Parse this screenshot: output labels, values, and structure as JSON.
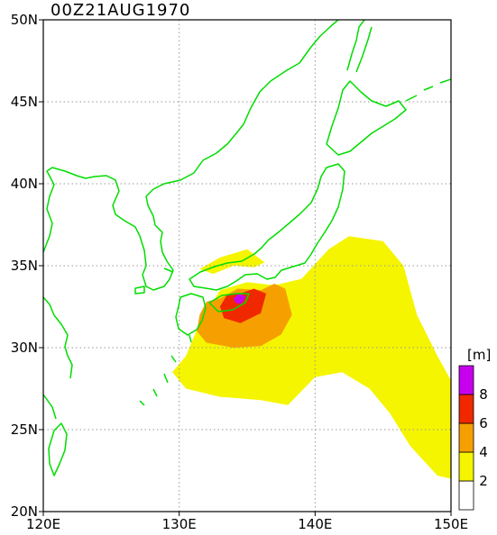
{
  "title": "00Z21AUG1970",
  "axes": {
    "lon": {
      "min": 120,
      "max": 150,
      "ticks": [
        {
          "value": 120,
          "label": "120E"
        },
        {
          "value": 130,
          "label": "130E"
        },
        {
          "value": 140,
          "label": "140E"
        },
        {
          "value": 150,
          "label": "150E"
        }
      ]
    },
    "lat": {
      "min": 20,
      "max": 50,
      "ticks": [
        {
          "value": 20,
          "label": "20N"
        },
        {
          "value": 25,
          "label": "25N"
        },
        {
          "value": 30,
          "label": "30N"
        },
        {
          "value": 35,
          "label": "35N"
        },
        {
          "value": 40,
          "label": "40N"
        },
        {
          "value": 45,
          "label": "45N"
        },
        {
          "value": 50,
          "label": "50N"
        }
      ]
    },
    "grid": true
  },
  "colorbar": {
    "unit_label": "[m]",
    "levels": [
      {
        "min": 0,
        "max": 2,
        "color": "#ffffff"
      },
      {
        "min": 2,
        "max": 4,
        "color": "#f5f500"
      },
      {
        "min": 4,
        "max": 6,
        "color": "#f5a000"
      },
      {
        "min": 6,
        "max": 8,
        "color": "#f02800"
      },
      {
        "min": 8,
        "max": 10,
        "color": "#c800f0"
      }
    ],
    "tick_labels": [
      "2",
      "4",
      "6",
      "8"
    ]
  },
  "colors": {
    "coastline": "#00dd00",
    "frame": "#000000",
    "grid": "#999999"
  },
  "chart_data": {
    "type": "heatmap",
    "title": "00Z21AUG1970",
    "xlabel": "",
    "ylabel": "",
    "xlim": [
      120,
      150
    ],
    "ylim": [
      20,
      50
    ],
    "unit": "m",
    "bins": [
      2,
      4,
      6,
      8
    ],
    "regions": [
      {
        "level": "2-4",
        "name": "",
        "lonlat": [
          [
            130.5,
            29.5
          ],
          [
            131.5,
            31.5
          ],
          [
            133,
            33.5
          ],
          [
            135,
            34
          ],
          [
            137,
            33.8
          ],
          [
            139,
            34.2
          ],
          [
            141,
            36
          ],
          [
            142.5,
            36.8
          ],
          [
            145,
            36.5
          ],
          [
            146.5,
            35
          ],
          [
            147.5,
            32
          ],
          [
            149,
            29.5
          ],
          [
            150,
            28
          ],
          [
            150,
            22
          ],
          [
            149,
            22.2
          ],
          [
            147,
            24
          ],
          [
            145.5,
            26
          ],
          [
            144,
            27.5
          ],
          [
            142,
            28.5
          ],
          [
            140,
            28.2
          ],
          [
            138,
            26.5
          ],
          [
            136,
            26.8
          ],
          [
            133,
            27
          ],
          [
            130.5,
            27.5
          ],
          [
            129.5,
            28.5
          ]
        ]
      },
      {
        "level": "2-4",
        "name": "",
        "lonlat": [
          [
            131.5,
            34.8
          ],
          [
            133,
            35.5
          ],
          [
            135,
            36
          ],
          [
            136.3,
            35.2
          ],
          [
            135.5,
            34.9
          ],
          [
            134,
            35
          ],
          [
            132.5,
            34.5
          ]
        ]
      },
      {
        "level": "4-6",
        "name": "",
        "lonlat": [
          [
            131.5,
            32
          ],
          [
            132,
            32.8
          ],
          [
            133,
            33
          ],
          [
            134.3,
            33.6
          ],
          [
            136,
            33.5
          ],
          [
            137,
            33.9
          ],
          [
            137.8,
            33.6
          ],
          [
            138.3,
            32
          ],
          [
            137.5,
            30.8
          ],
          [
            136,
            30.1
          ],
          [
            134,
            30
          ],
          [
            132,
            30.3
          ],
          [
            131.3,
            31
          ]
        ]
      },
      {
        "level": "6-8",
        "name": "",
        "lonlat": [
          [
            133,
            32.5
          ],
          [
            133.5,
            33.2
          ],
          [
            134.5,
            33.3
          ],
          [
            135.5,
            33.6
          ],
          [
            136.4,
            33.3
          ],
          [
            136,
            32.1
          ],
          [
            134.5,
            31.5
          ],
          [
            133.3,
            31.8
          ]
        ]
      },
      {
        "level": "8-10",
        "name": "",
        "lonlat": [
          [
            134,
            33
          ],
          [
            134.4,
            33.3
          ],
          [
            134.9,
            33.1
          ],
          [
            134.6,
            32.7
          ],
          [
            134.2,
            32.7
          ]
        ]
      }
    ]
  }
}
